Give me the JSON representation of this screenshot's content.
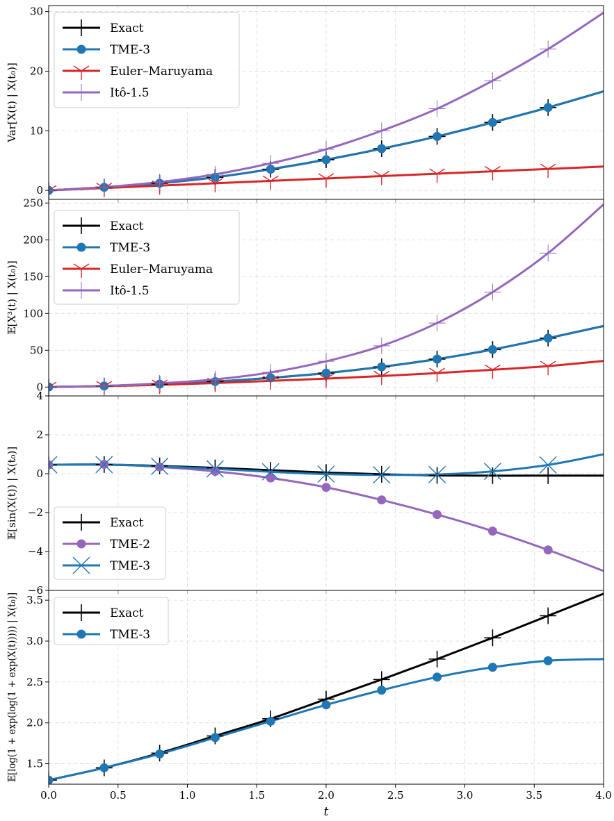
{
  "colors": {
    "exact": "#000000",
    "tme3": "#1f77b4",
    "em": "#d62728",
    "ito": "#9467bd",
    "tme2": "#9467bd"
  },
  "chart_data": [
    {
      "type": "line",
      "ylabel": "Var[X(t) | X(t₀)]",
      "xlabel": "",
      "xlim": [
        0,
        4
      ],
      "ylim": [
        -1.5,
        31
      ],
      "xticks": [
        0.0,
        0.5,
        1.0,
        1.5,
        2.0,
        2.5,
        3.0,
        3.5,
        4.0
      ],
      "yticks": [
        0,
        10,
        20,
        30
      ],
      "grid": true,
      "legend_position": "top-left",
      "markers_x": [
        0,
        0.4,
        0.8,
        1.2,
        1.6,
        2.0,
        2.4,
        2.8,
        3.2,
        3.6
      ],
      "series": [
        {
          "name": "Exact",
          "color_key": "exact",
          "marker": "plus",
          "x": [
            0,
            0.4,
            0.8,
            1.2,
            1.6,
            2.0,
            2.4,
            2.8,
            3.2,
            3.6,
            4.0
          ],
          "y": [
            0,
            0.52,
            1.2,
            2.2,
            3.55,
            5.15,
            7.0,
            9.05,
            11.4,
            13.9,
            16.6
          ]
        },
        {
          "name": "TME-3",
          "color_key": "tme3",
          "marker": "circle",
          "x": [
            0,
            0.4,
            0.8,
            1.2,
            1.6,
            2.0,
            2.4,
            2.8,
            3.2,
            3.6,
            4.0
          ],
          "y": [
            0,
            0.52,
            1.2,
            2.2,
            3.55,
            5.15,
            7.0,
            9.05,
            11.4,
            13.9,
            16.6
          ]
        },
        {
          "name": "Euler–Maruyama",
          "color_key": "em",
          "marker": "tri",
          "x": [
            0,
            0.4,
            0.8,
            1.2,
            1.6,
            2.0,
            2.4,
            2.8,
            3.2,
            3.6,
            4.0
          ],
          "y": [
            0,
            0.4,
            0.8,
            1.2,
            1.6,
            2.0,
            2.4,
            2.8,
            3.2,
            3.6,
            4.0
          ]
        },
        {
          "name": "Itô-1.5",
          "color_key": "ito",
          "marker": "thin-plus",
          "x": [
            0,
            0.4,
            0.8,
            1.2,
            1.6,
            2.0,
            2.4,
            2.8,
            3.2,
            3.6,
            4.0
          ],
          "y": [
            0,
            0.56,
            1.4,
            2.7,
            4.55,
            6.9,
            10.0,
            13.7,
            18.4,
            23.7,
            29.8
          ]
        }
      ]
    },
    {
      "type": "line",
      "ylabel": "𝔼[X³(t) | X(t₀)]",
      "xlabel": "",
      "xlim": [
        0,
        4
      ],
      "ylim": [
        -12,
        255
      ],
      "xticks": [
        0.0,
        0.5,
        1.0,
        1.5,
        2.0,
        2.5,
        3.0,
        3.5,
        4.0
      ],
      "yticks": [
        0,
        50,
        100,
        150,
        200,
        250
      ],
      "grid": true,
      "legend_position": "top-left",
      "markers_x": [
        0,
        0.4,
        0.8,
        1.2,
        1.6,
        2.0,
        2.4,
        2.8,
        3.2,
        3.6
      ],
      "series": [
        {
          "name": "Exact",
          "color_key": "exact",
          "marker": "plus",
          "x": [
            0,
            0.4,
            0.8,
            1.2,
            1.6,
            2.0,
            2.4,
            2.8,
            3.2,
            3.6,
            4.0
          ],
          "y": [
            0.1,
            1.5,
            4.0,
            7.5,
            12.5,
            19.0,
            27.5,
            38.0,
            51.0,
            66.5,
            83.0
          ]
        },
        {
          "name": "TME-3",
          "color_key": "tme3",
          "marker": "circle",
          "x": [
            0,
            0.4,
            0.8,
            1.2,
            1.6,
            2.0,
            2.4,
            2.8,
            3.2,
            3.6,
            4.0
          ],
          "y": [
            0.1,
            1.5,
            4.0,
            7.5,
            12.5,
            19.0,
            27.5,
            38.0,
            51.0,
            66.5,
            83.0
          ]
        },
        {
          "name": "Euler–Maruyama",
          "color_key": "em",
          "marker": "tri",
          "x": [
            0,
            0.4,
            0.8,
            1.2,
            1.6,
            2.0,
            2.4,
            2.8,
            3.2,
            3.6,
            4.0
          ],
          "y": [
            0.1,
            1.2,
            3.0,
            5.5,
            8.5,
            11.5,
            15.0,
            19.0,
            23.5,
            28.5,
            35.5
          ]
        },
        {
          "name": "Itô-1.5",
          "color_key": "ito",
          "marker": "thin-plus",
          "x": [
            0,
            0.4,
            0.8,
            1.2,
            1.6,
            2.0,
            2.4,
            2.8,
            3.2,
            3.6,
            4.0
          ],
          "y": [
            0.1,
            1.6,
            5.0,
            10.5,
            20.0,
            35.0,
            56.0,
            87.0,
            129.0,
            182.0,
            248.0
          ]
        }
      ]
    },
    {
      "type": "line",
      "ylabel": "𝔼[sin(X(t)) | X(t₀)]",
      "xlabel": "",
      "xlim": [
        0,
        4
      ],
      "ylim": [
        -6,
        4
      ],
      "xticks": [
        0.0,
        0.5,
        1.0,
        1.5,
        2.0,
        2.5,
        3.0,
        3.5,
        4.0
      ],
      "yticks": [
        -6,
        -4,
        -2,
        0,
        2,
        4
      ],
      "grid": true,
      "legend_position": "bottom-left",
      "markers_x": [
        0,
        0.4,
        0.8,
        1.2,
        1.6,
        2.0,
        2.4,
        2.8,
        3.2,
        3.6
      ],
      "series": [
        {
          "name": "Exact",
          "color_key": "exact",
          "marker": "plus",
          "x": [
            0,
            0.4,
            0.8,
            1.2,
            1.6,
            2.0,
            2.4,
            2.8,
            3.2,
            3.6,
            4.0
          ],
          "y": [
            0.46,
            0.47,
            0.4,
            0.3,
            0.18,
            0.06,
            -0.03,
            -0.09,
            -0.1,
            -0.1,
            -0.1
          ]
        },
        {
          "name": "TME-2",
          "color_key": "tme2",
          "marker": "circle",
          "x": [
            0,
            0.4,
            0.8,
            1.2,
            1.6,
            2.0,
            2.4,
            2.8,
            3.2,
            3.6,
            4.0
          ],
          "y": [
            0.46,
            0.48,
            0.35,
            0.12,
            -0.22,
            -0.7,
            -1.35,
            -2.1,
            -2.95,
            -3.92,
            -5.0
          ]
        },
        {
          "name": "TME-3",
          "color_key": "tme3",
          "marker": "x",
          "x": [
            0,
            0.4,
            0.8,
            1.2,
            1.6,
            2.0,
            2.4,
            2.8,
            3.2,
            3.6,
            4.0
          ],
          "y": [
            0.46,
            0.47,
            0.38,
            0.25,
            0.1,
            -0.02,
            -0.06,
            -0.04,
            0.12,
            0.45,
            1.0
          ]
        }
      ]
    },
    {
      "type": "line",
      "ylabel": "𝔼[log(1 + exp(log(1 + exp(X(t))))) | X(t₀)]",
      "xlabel": "t",
      "xlim": [
        0,
        4
      ],
      "ylim": [
        1.25,
        3.62
      ],
      "xticks": [
        0.0,
        0.5,
        1.0,
        1.5,
        2.0,
        2.5,
        3.0,
        3.5,
        4.0
      ],
      "yticks": [
        1.5,
        2.0,
        2.5,
        3.0,
        3.5
      ],
      "grid": true,
      "legend_position": "top-left",
      "markers_x": [
        0,
        0.4,
        0.8,
        1.2,
        1.6,
        2.0,
        2.4,
        2.8,
        3.2,
        3.6
      ],
      "series": [
        {
          "name": "Exact",
          "color_key": "exact",
          "marker": "plus",
          "x": [
            0,
            0.4,
            0.8,
            1.2,
            1.6,
            2.0,
            2.4,
            2.8,
            3.2,
            3.6,
            4.0
          ],
          "y": [
            1.3,
            1.45,
            1.63,
            1.84,
            2.05,
            2.29,
            2.53,
            2.78,
            3.04,
            3.31,
            3.58
          ]
        },
        {
          "name": "TME-3",
          "color_key": "tme3",
          "marker": "circle",
          "x": [
            0,
            0.4,
            0.8,
            1.2,
            1.6,
            2.0,
            2.4,
            2.8,
            3.2,
            3.6,
            4.0
          ],
          "y": [
            1.3,
            1.45,
            1.62,
            1.82,
            2.02,
            2.22,
            2.4,
            2.56,
            2.68,
            2.76,
            2.78
          ]
        }
      ]
    }
  ]
}
